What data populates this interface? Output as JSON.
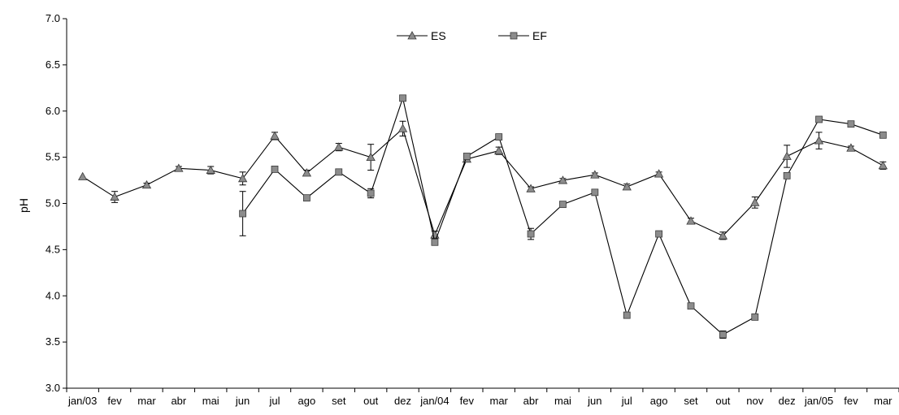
{
  "chart_data": {
    "type": "line",
    "ylabel": "pH",
    "xlabel": "",
    "ylim": [
      3.0,
      7.0
    ],
    "yticks": [
      "3.0",
      "3.5",
      "4.0",
      "4.5",
      "5.0",
      "5.5",
      "6.0",
      "6.5",
      "7.0"
    ],
    "categories": [
      "jan/03",
      "fev",
      "mar",
      "abr",
      "mai",
      "jun",
      "jul",
      "ago",
      "set",
      "out",
      "dez",
      "jan/04",
      "fev",
      "mar",
      "abr",
      "mai",
      "jun",
      "jul",
      "ago",
      "set",
      "out",
      "nov",
      "dez",
      "jan/05",
      "fev",
      "mar"
    ],
    "grid": false,
    "legend_position": "top-center",
    "series": [
      {
        "name": "ES",
        "marker": "triangle",
        "color": "#808080",
        "values": [
          5.29,
          5.07,
          5.2,
          5.38,
          5.36,
          5.27,
          5.73,
          5.33,
          5.61,
          5.5,
          5.81,
          4.66,
          5.48,
          5.57,
          5.16,
          5.25,
          5.31,
          5.18,
          5.32,
          4.81,
          4.65,
          5.01,
          5.51,
          5.68,
          5.6,
          5.41
        ],
        "errors": [
          0.0,
          0.06,
          0.02,
          0.02,
          0.04,
          0.07,
          0.04,
          0.03,
          0.04,
          0.14,
          0.08,
          0.04,
          0.03,
          0.04,
          0.02,
          0.02,
          0.02,
          0.03,
          0.02,
          0.03,
          0.04,
          0.06,
          0.12,
          0.09,
          0.02,
          0.04
        ]
      },
      {
        "name": "EF",
        "marker": "square",
        "color": "#808080",
        "values": [
          null,
          null,
          null,
          null,
          null,
          4.89,
          5.37,
          5.06,
          5.34,
          5.11,
          6.14,
          4.58,
          5.51,
          5.72,
          4.67,
          4.99,
          5.12,
          3.79,
          4.67,
          3.89,
          3.58,
          3.77,
          5.3,
          5.91,
          5.86,
          5.74
        ],
        "errors": [
          0,
          0,
          0,
          0,
          0,
          0.24,
          0.0,
          0.0,
          0.0,
          0.05,
          0.03,
          0.02,
          0.0,
          0.03,
          0.06,
          0.0,
          0.02,
          0.02,
          0.02,
          0.0,
          0.04,
          0.0,
          0.0,
          0.0,
          0.0,
          0.0
        ]
      }
    ]
  }
}
